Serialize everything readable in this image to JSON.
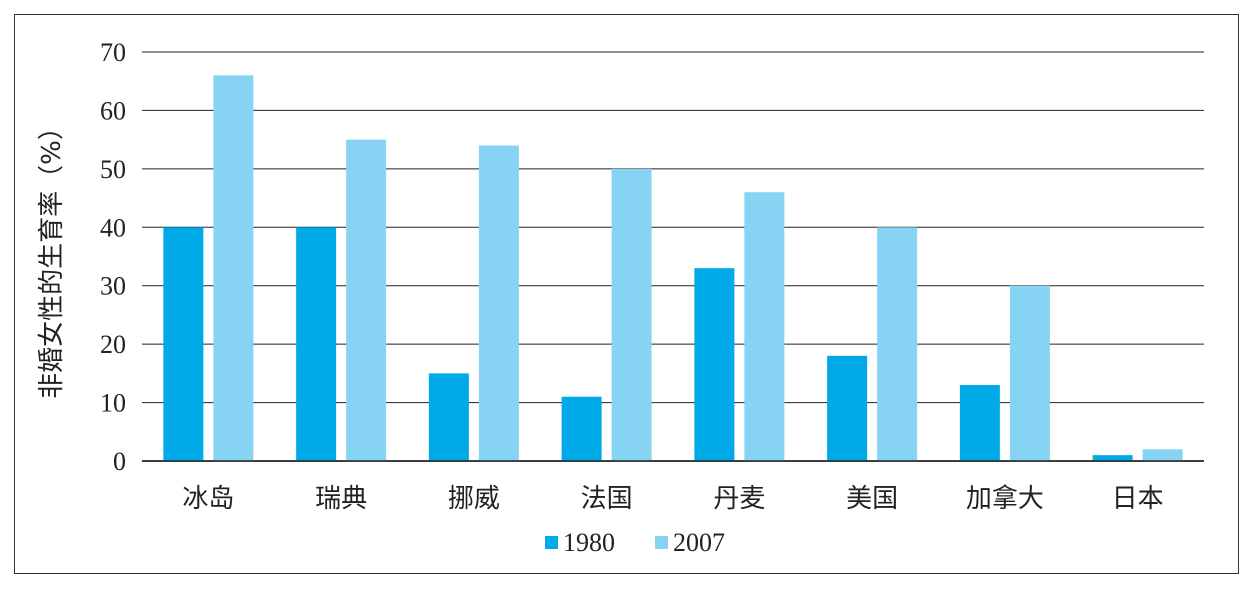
{
  "chart_data": {
    "type": "bar",
    "title": "",
    "xlabel": "",
    "ylabel": "非婚女性的生育率（%）",
    "ylim": [
      0,
      70
    ],
    "yticks": [
      0,
      10,
      20,
      30,
      40,
      50,
      60,
      70
    ],
    "grid": true,
    "legend_position": "bottom-center",
    "categories": [
      "冰岛",
      "瑞典",
      "挪威",
      "法国",
      "丹麦",
      "美国",
      "加拿大",
      "日本"
    ],
    "series": [
      {
        "name": "1980",
        "color": "#00a9e8",
        "values": [
          40,
          40,
          15,
          11,
          33,
          18,
          13,
          1
        ]
      },
      {
        "name": "2007",
        "color": "#86d3f4",
        "values": [
          66,
          55,
          54,
          50,
          46,
          40,
          30,
          2
        ]
      }
    ]
  }
}
